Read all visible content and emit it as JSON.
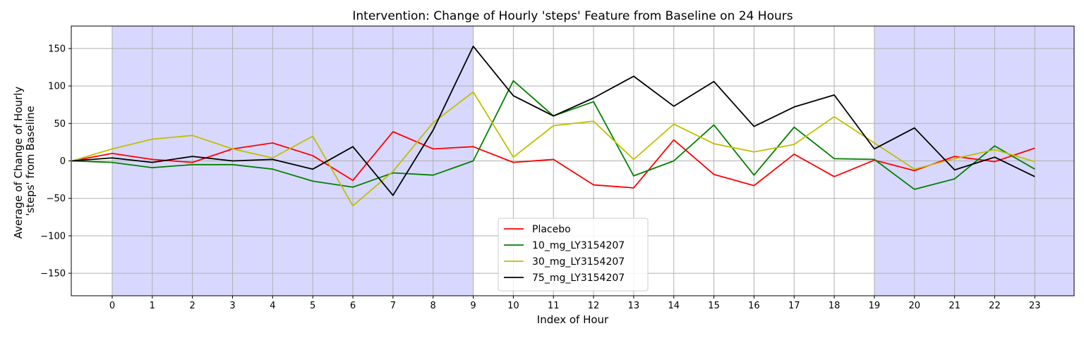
{
  "chart_data": {
    "type": "line",
    "title": "Intervention: Change of Hourly 'steps' Feature from Baseline on 24 Hours",
    "xlabel": "Index of Hour",
    "ylabel_lines": [
      "Average of Change of Hourly",
      "'steps' from Baseline"
    ],
    "x_ticks": [
      "0",
      "1",
      "2",
      "3",
      "4",
      "5",
      "6",
      "7",
      "8",
      "9",
      "10",
      "11",
      "12",
      "13",
      "14",
      "15",
      "16",
      "17",
      "18",
      "19",
      "20",
      "21",
      "22",
      "23"
    ],
    "y_ticks": [
      150,
      100,
      50,
      0,
      -50,
      -100,
      -150
    ],
    "y_tick_labels": [
      "150",
      "100",
      "50",
      "0",
      "−50",
      "−100",
      "−150"
    ],
    "xlim": [
      -1.02,
      23.98
    ],
    "ylim": [
      -180,
      180
    ],
    "grid": true,
    "legend_position": "bottom-center",
    "shaded_regions": [
      {
        "from": 0,
        "to": 9,
        "color": "#d8d8ff"
      },
      {
        "from": 19,
        "to": 23.98,
        "color": "#d8d8ff"
      }
    ],
    "x": [
      -1,
      0,
      1,
      2,
      3,
      4,
      5,
      6,
      7,
      8,
      9,
      10,
      11,
      12,
      13,
      14,
      15,
      16,
      17,
      18,
      19,
      20,
      21,
      22,
      23
    ],
    "series": [
      {
        "name": "Placebo",
        "color": "#ff0000",
        "values": [
          0,
          10,
          2,
          -2,
          16,
          24,
          7,
          -26,
          39,
          16,
          19,
          -2,
          2,
          -32,
          -36,
          28,
          -18,
          -33,
          9,
          -21,
          1,
          -13,
          6,
          -1,
          17
        ]
      },
      {
        "name": "10_mg_LY3154207",
        "color": "#008000",
        "values": [
          0,
          -2,
          -9,
          -5,
          -5,
          -11,
          -27,
          -35,
          -16,
          -19,
          0,
          107,
          60,
          79,
          -20,
          0,
          48,
          -19,
          45,
          3,
          2,
          -38,
          -24,
          20,
          -11
        ]
      },
      {
        "name": "30_mg_LY3154207",
        "color": "#bfbf00",
        "values": [
          0,
          16,
          29,
          34,
          16,
          4,
          33,
          -60,
          -14,
          51,
          92,
          5,
          47,
          53,
          2,
          49,
          23,
          12,
          22,
          59,
          24,
          -11,
          3,
          15,
          -1
        ]
      },
      {
        "name": "75_mg_LY3154207",
        "color": "#000000",
        "values": [
          0,
          4,
          -2,
          6,
          0,
          2,
          -11,
          19,
          -46,
          41,
          153,
          87,
          60,
          84,
          113,
          73,
          106,
          46,
          72,
          88,
          16,
          44,
          -12,
          5,
          -21
        ]
      }
    ]
  }
}
